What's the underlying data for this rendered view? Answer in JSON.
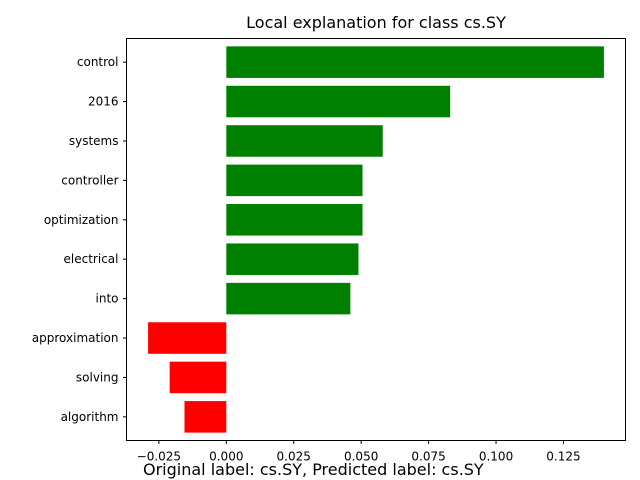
{
  "chart_data": {
    "type": "bar",
    "orientation": "horizontal",
    "title": "Local explanation for class cs.SY",
    "footer": "Original label: cs.SY, Predicted label: cs.SY",
    "xlabel": "",
    "ylabel": "",
    "xlim": [
      -0.037,
      0.148
    ],
    "xticks": [
      -0.025,
      0.0,
      0.025,
      0.05,
      0.075,
      0.1,
      0.125
    ],
    "xtick_labels": [
      "−0.025",
      "0.000",
      "0.025",
      "0.050",
      "0.075",
      "0.100",
      "0.125"
    ],
    "categories": [
      "control",
      "2016",
      "systems",
      "controller",
      "optimization",
      "electrical",
      "into",
      "approximation",
      "solving",
      "algorithm"
    ],
    "values": [
      0.14,
      0.083,
      0.058,
      0.0505,
      0.0505,
      0.049,
      0.046,
      -0.029,
      -0.021,
      -0.0155
    ],
    "colors": {
      "positive": "#008000",
      "negative": "#ff0000"
    },
    "grid": false,
    "legend": "none"
  }
}
